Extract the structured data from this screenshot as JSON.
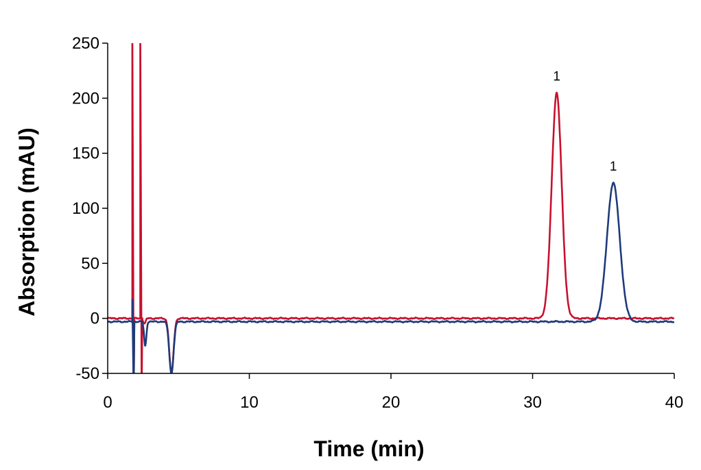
{
  "chart_data": {
    "type": "line",
    "xlabel": "Time (min)",
    "ylabel": "Absorption (mAU)",
    "xlim": [
      0,
      40
    ],
    "ylim": [
      -50,
      250
    ],
    "x_ticks": [
      0,
      10,
      20,
      30,
      40
    ],
    "y_ticks": [
      -50,
      0,
      50,
      100,
      150,
      200,
      250
    ],
    "grid": false,
    "legend": "none",
    "series": [
      {
        "color": "#c8102e",
        "baseline": 0,
        "spikes": [
          {
            "x": 1.75,
            "y_max": 250,
            "y_min": -50
          },
          {
            "x": 2.3,
            "y_max": 250,
            "y_min": -50
          }
        ],
        "dips": [
          {
            "x": 2.6,
            "y": -5,
            "width": 0.08
          },
          {
            "x": 4.5,
            "y": -50,
            "width": 0.15
          }
        ],
        "peaks": [
          {
            "x": 31.7,
            "y": 205,
            "sigma": 0.35,
            "label": "1"
          }
        ]
      },
      {
        "color": "#1f3a7a",
        "baseline": -3,
        "spikes": [
          {
            "x": 1.75,
            "y_max": -3,
            "y_min": -50
          }
        ],
        "dips": [
          {
            "x": 2.65,
            "y": -25,
            "width": 0.08
          },
          {
            "x": 4.5,
            "y": -50,
            "width": 0.15
          }
        ],
        "peaks": [
          {
            "x": 35.7,
            "y": 123,
            "sigma": 0.45,
            "label": "1"
          }
        ]
      }
    ]
  }
}
